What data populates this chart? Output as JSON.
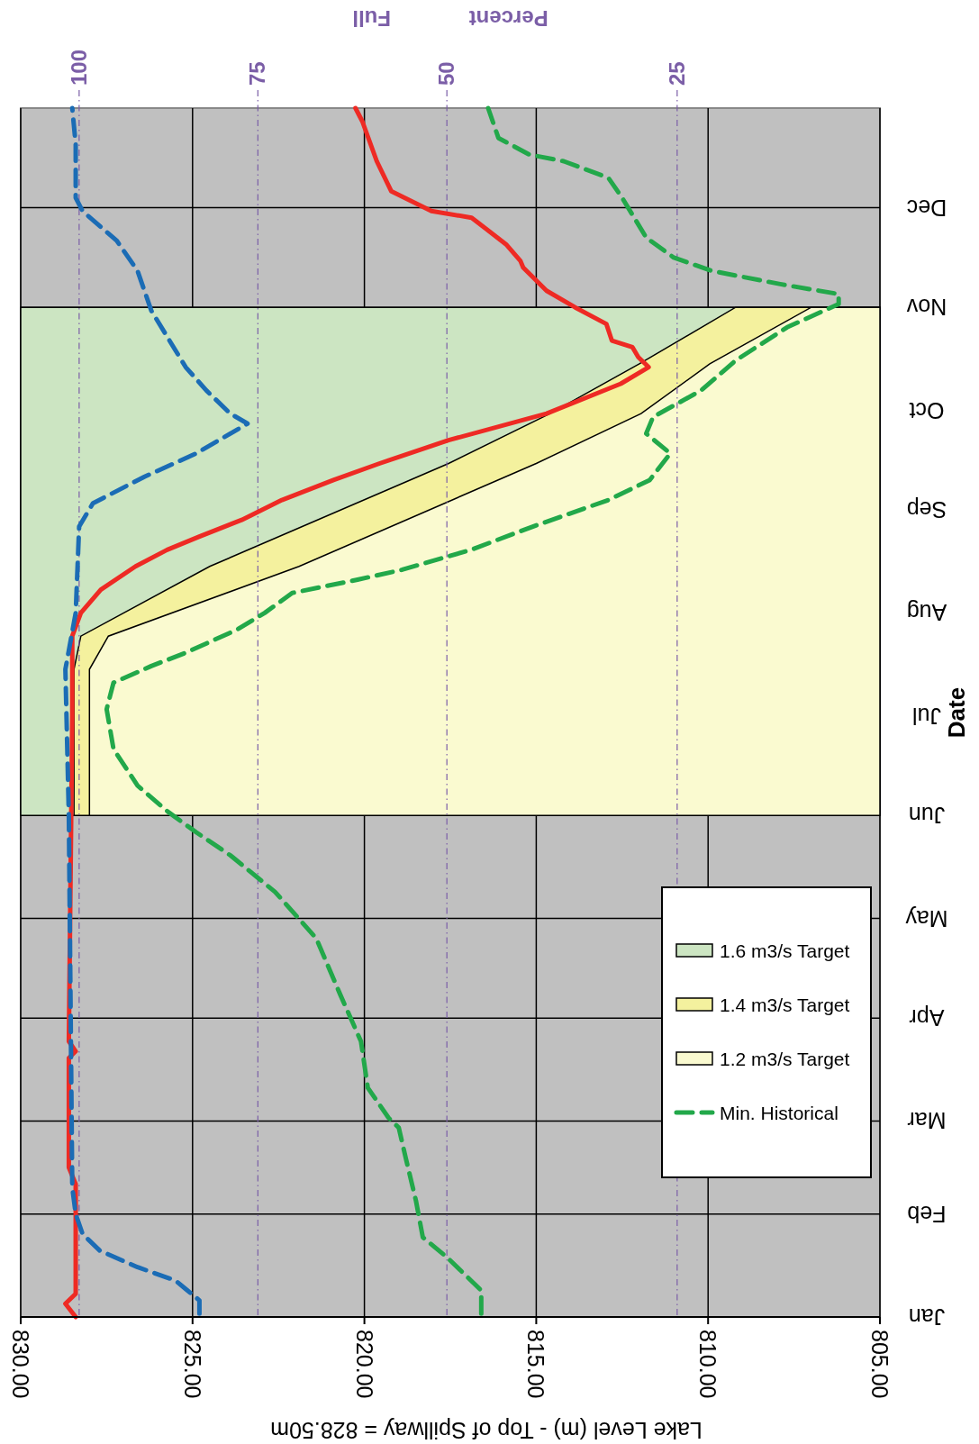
{
  "chart_data": {
    "type": "line",
    "orientation": "horizontal",
    "ylabel": "Date",
    "xlabel": "Lake Level (m) - Top of Spillway = 828.50m",
    "x2label": "Percent Full",
    "ylim": [
      "--01-01",
      "--12-31"
    ],
    "yticks": [
      {
        "value": "--01-01",
        "label": "Jan"
      },
      {
        "value": "--02-01",
        "label": "Feb"
      },
      {
        "value": "--03-01",
        "label": "Mar"
      },
      {
        "value": "--04-01",
        "label": "Apr"
      },
      {
        "value": "--05-01",
        "label": "May"
      },
      {
        "value": "--06-01",
        "label": "Jun"
      },
      {
        "value": "--07-01",
        "label": "Jul"
      },
      {
        "value": "--08-01",
        "label": "Aug"
      },
      {
        "value": "--09-01",
        "label": "Sep"
      },
      {
        "value": "--10-01",
        "label": "Oct"
      },
      {
        "value": "--11-01",
        "label": "Nov"
      },
      {
        "value": "--12-01",
        "label": "Dec"
      }
    ],
    "xlim": [
      830,
      805
    ],
    "xticks": [
      {
        "value": 830,
        "label": "830.00"
      },
      {
        "value": 825,
        "label": "825.00"
      },
      {
        "value": 820,
        "label": "820.00"
      },
      {
        "value": 815,
        "label": "815.00"
      },
      {
        "value": 810,
        "label": "810.00"
      },
      {
        "value": 805,
        "label": "805.00"
      }
    ],
    "grid": true,
    "legend": "bottom right",
    "ref_lines": [
      {
        "axis": "x",
        "value": 828.3,
        "color": "#7b5ea7"
      },
      {
        "axis": "x",
        "value": 823.1,
        "color": "#7b5ea7"
      },
      {
        "axis": "x",
        "value": 817.6,
        "color": "#7b5ea7"
      },
      {
        "axis": "x",
        "value": 810.9,
        "color": "#7b5ea7"
      }
    ],
    "annotations": [
      "100",
      "75",
      "50",
      "25"
    ],
    "series": [
      {
        "type": "area",
        "name": "1.6 m3/s Target",
        "color": "#cce5c2",
        "x": [
          "--06-01",
          "--11-01"
        ],
        "values": [
          830,
          830
        ]
      },
      {
        "type": "area",
        "name": "1.4 m3/s Target",
        "color": "#f4f19e",
        "x": [
          "--06-01",
          "--07-15",
          "--07-25",
          "--08-15",
          "--09-15",
          "--09-30",
          "--10-15",
          "--11-01"
        ],
        "values": [
          828.45,
          828.45,
          828.25,
          824.5,
          817.55,
          814.6,
          812.0,
          809.2
        ]
      },
      {
        "type": "area",
        "name": "1.2 m3/s Target",
        "color": "#fafad0",
        "x": [
          "--06-01",
          "--07-15",
          "--07-25",
          "--08-15",
          "--09-15",
          "--09-30",
          "--10-15",
          "--11-01"
        ],
        "values": [
          828.0,
          828.0,
          827.45,
          821.9,
          815.0,
          811.95,
          809.95,
          807.0
        ]
      },
      {
        "line_style": "solid",
        "color": "#ee2a24",
        "x": [
          "--01-01",
          "--01-05",
          "--01-08",
          "--02-10",
          "--02-15",
          "--03-20",
          "--03-22",
          "--03-25",
          "--07-01",
          "--07-25",
          "--08-01",
          "--08-08",
          "--08-15",
          "--08-20",
          "--08-24",
          "--08-29",
          "--09-04",
          "--09-10",
          "--09-15",
          "--09-22",
          "--09-30",
          "--10-09",
          "--10-14",
          "--10-17",
          "--10-20",
          "--10-22",
          "--10-27",
          "--11-01",
          "--11-06",
          "--11-13",
          "--11-15",
          "--11-20",
          "--11-28",
          "--11-30",
          "--12-06",
          "--12-15",
          "--12-27",
          "--12-31"
        ],
        "values": [
          828.4,
          828.7,
          828.4,
          828.4,
          828.6,
          828.6,
          828.4,
          828.6,
          828.5,
          828.5,
          828.25,
          827.67,
          826.66,
          825.74,
          824.8,
          823.57,
          822.4,
          820.9,
          819.56,
          817.55,
          814.7,
          812.54,
          811.73,
          812.03,
          812.2,
          812.8,
          812.96,
          813.87,
          814.7,
          815.38,
          815.46,
          815.88,
          816.88,
          818.05,
          819.22,
          819.64,
          820.06,
          820.26
        ]
      },
      {
        "line_style": "dashed",
        "color": "#1b6cb5",
        "x": [
          "--01-02",
          "--01-06",
          "--01-09",
          "--01-12",
          "--01-16",
          "--01-21",
          "--01-26",
          "--02-01",
          "--02-09",
          "--06-01",
          "--07-15",
          "--08-01",
          "--08-27",
          "--09-03",
          "--09-11",
          "--09-18",
          "--09-27",
          "--09-30",
          "--10-07",
          "--10-14",
          "--10-31",
          "--11-12",
          "--11-21",
          "--11-30",
          "--12-04",
          "--12-20",
          "--12-31"
        ],
        "values": [
          824.8,
          824.8,
          825.15,
          825.5,
          826.6,
          827.7,
          828.2,
          828.4,
          828.5,
          828.6,
          828.7,
          828.4,
          828.3,
          827.9,
          826.4,
          824.9,
          823.4,
          823.9,
          824.6,
          825.2,
          826.2,
          826.6,
          827.2,
          828.2,
          828.4,
          828.4,
          828.5
        ]
      },
      {
        "line_style": "dashed",
        "name": "Min. Historical",
        "color": "#22a84a",
        "x": [
          "--01-02",
          "--01-09",
          "--01-12",
          "--01-19",
          "--01-25",
          "--02-05",
          "--02-18",
          "--02-27",
          "--03-02",
          "--03-11",
          "--03-25",
          "--04-08",
          "--04-25",
          "--05-02",
          "--05-09",
          "--05-20",
          "--05-27",
          "--06-02",
          "--06-10",
          "--06-21",
          "--07-03",
          "--07-11",
          "--07-16",
          "--07-20",
          "--07-27",
          "--08-01",
          "--08-07",
          "--08-11",
          "--08-14",
          "--08-20",
          "--08-27",
          "--09-04",
          "--09-10",
          "--09-18",
          "--09-24",
          "--09-29",
          "--10-07",
          "--10-16",
          "--10-26",
          "--11-02",
          "--11-05",
          "--11-08",
          "--11-12",
          "--11-16",
          "--11-22",
          "--12-04",
          "--12-10",
          "--12-15",
          "--12-17",
          "--12-22",
          "--12-31"
        ],
        "values": [
          816.6,
          816.6,
          816.9,
          817.6,
          818.3,
          818.5,
          818.8,
          819.0,
          819.3,
          819.9,
          820.1,
          820.7,
          821.4,
          822.0,
          822.6,
          823.9,
          824.9,
          825.7,
          826.6,
          827.3,
          827.5,
          827.3,
          826.2,
          825.2,
          823.7,
          822.9,
          822.1,
          820.2,
          818.9,
          816.9,
          815.1,
          812.9,
          811.7,
          811.1,
          811.8,
          811.6,
          810.2,
          809.2,
          807.7,
          806.2,
          806.2,
          807.9,
          809.9,
          811.0,
          811.8,
          812.5,
          812.9,
          814.2,
          815.2,
          816.1,
          816.4
        ]
      }
    ]
  }
}
